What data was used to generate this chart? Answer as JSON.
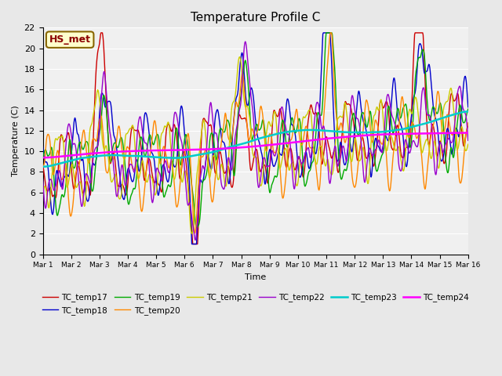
{
  "title": "Temperature Profile C",
  "xlabel": "Time",
  "ylabel": "Temperature (C)",
  "ylim": [
    0,
    22
  ],
  "xlim": [
    0,
    15
  ],
  "xtick_labels": [
    "Mar 1",
    "Mar 2",
    "Mar 3",
    "Mar 4",
    "Mar 5",
    "Mar 6",
    "Mar 7",
    "Mar 8",
    "Mar 9",
    "Mar 10",
    "Mar 11",
    "Mar 12",
    "Mar 13",
    "Mar 14",
    "Mar 15",
    "Mar 16"
  ],
  "annotation": "HS_met",
  "bg_color": "#e8e8e8",
  "plot_bg": "#f0f0f0",
  "series_colors": {
    "TC_temp17": "#cc0000",
    "TC_temp18": "#0000cc",
    "TC_temp19": "#00aa00",
    "TC_temp20": "#ff8800",
    "TC_temp21": "#cccc00",
    "TC_temp22": "#9900cc",
    "TC_temp23": "#00cccc",
    "TC_temp24": "#ff00ff"
  }
}
